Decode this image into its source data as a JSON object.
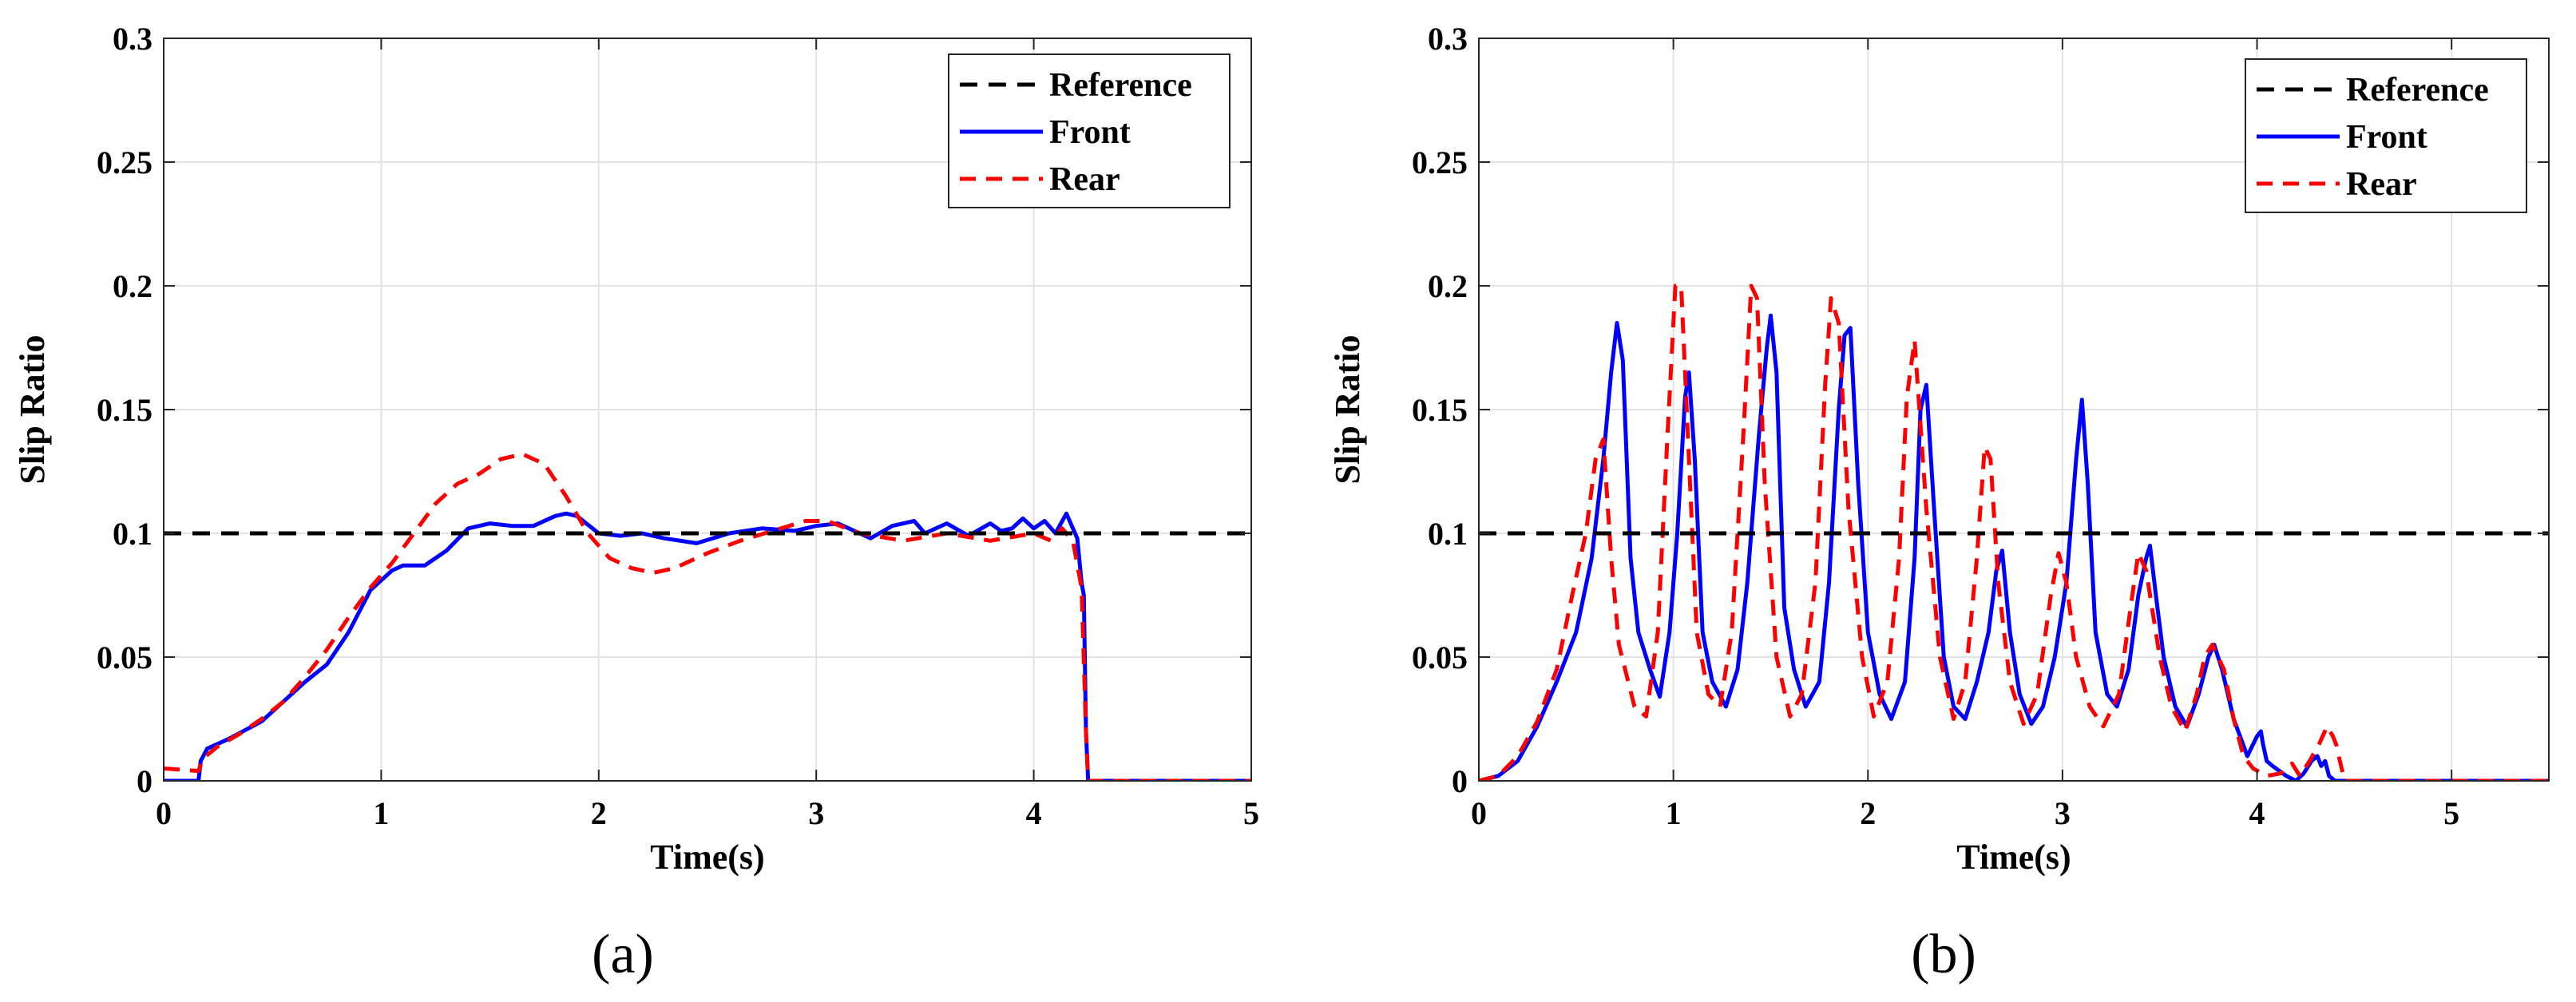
{
  "chart_data": [
    {
      "type": "line",
      "caption": "(a)",
      "xlabel": "Time(s)",
      "ylabel": "Slip Ratio",
      "xlim": [
        0,
        5
      ],
      "ylim": [
        0,
        0.3
      ],
      "xticks": [
        "0",
        "1",
        "2",
        "3",
        "4",
        "5"
      ],
      "yticks": [
        "0",
        "0.05",
        "0.1",
        "0.15",
        "0.2",
        "0.25",
        "0.3"
      ],
      "grid": true,
      "legend_position": "top-right",
      "series": [
        {
          "name": "Reference",
          "color": "#000000",
          "style": "dashed",
          "x": [
            0,
            5
          ],
          "y": [
            0.1,
            0.1
          ]
        },
        {
          "name": "Front",
          "color": "#0000ff",
          "style": "solid",
          "x": [
            0,
            0.16,
            0.17,
            0.2,
            0.3,
            0.45,
            0.55,
            0.65,
            0.75,
            0.85,
            0.95,
            1.05,
            1.1,
            1.2,
            1.3,
            1.4,
            1.5,
            1.6,
            1.7,
            1.8,
            1.85,
            1.9,
            2.0,
            2.1,
            2.2,
            2.3,
            2.45,
            2.6,
            2.75,
            2.9,
            3.0,
            3.1,
            3.25,
            3.35,
            3.45,
            3.5,
            3.6,
            3.7,
            3.8,
            3.85,
            3.9,
            3.95,
            4.0,
            4.05,
            4.1,
            4.15,
            4.2,
            4.22,
            4.23,
            4.24,
            4.25,
            5.0
          ],
          "y": [
            0,
            0,
            0.008,
            0.013,
            0.017,
            0.024,
            0.032,
            0.04,
            0.047,
            0.06,
            0.077,
            0.085,
            0.087,
            0.087,
            0.093,
            0.102,
            0.104,
            0.103,
            0.103,
            0.107,
            0.108,
            0.107,
            0.1,
            0.099,
            0.1,
            0.098,
            0.096,
            0.1,
            0.102,
            0.101,
            0.103,
            0.104,
            0.098,
            0.103,
            0.105,
            0.1,
            0.104,
            0.099,
            0.104,
            0.101,
            0.102,
            0.106,
            0.102,
            0.105,
            0.1,
            0.108,
            0.098,
            0.08,
            0.075,
            0.02,
            0,
            0
          ]
        },
        {
          "name": "Rear",
          "color": "#ff0000",
          "style": "dashed",
          "x": [
            0,
            0.16,
            0.18,
            0.25,
            0.35,
            0.45,
            0.55,
            0.65,
            0.75,
            0.85,
            0.95,
            1.05,
            1.15,
            1.25,
            1.35,
            1.45,
            1.55,
            1.65,
            1.75,
            1.85,
            1.95,
            2.05,
            2.15,
            2.25,
            2.35,
            2.5,
            2.65,
            2.8,
            2.95,
            3.05,
            3.2,
            3.4,
            3.6,
            3.8,
            4.0,
            4.08,
            4.13,
            4.18,
            4.22,
            4.24,
            4.25,
            5.0
          ],
          "y": [
            0.005,
            0.004,
            0.009,
            0.014,
            0.019,
            0.025,
            0.032,
            0.042,
            0.053,
            0.066,
            0.078,
            0.088,
            0.1,
            0.112,
            0.12,
            0.124,
            0.13,
            0.132,
            0.128,
            0.115,
            0.1,
            0.09,
            0.086,
            0.084,
            0.086,
            0.092,
            0.097,
            0.101,
            0.105,
            0.105,
            0.1,
            0.097,
            0.1,
            0.097,
            0.1,
            0.097,
            0.102,
            0.097,
            0.078,
            0.02,
            0,
            0
          ]
        }
      ]
    },
    {
      "type": "line",
      "caption": "(b)",
      "xlabel": "Time(s)",
      "ylabel": "Slip Ratio",
      "xlim": [
        0,
        5.5
      ],
      "ylim": [
        0,
        0.3
      ],
      "xticks": [
        "0",
        "1",
        "2",
        "3",
        "4",
        "5"
      ],
      "yticks": [
        "0",
        "0.05",
        "0.1",
        "0.15",
        "0.2",
        "0.25",
        "0.3"
      ],
      "grid": true,
      "legend_position": "top-right",
      "series": [
        {
          "name": "Reference",
          "color": "#000000",
          "style": "dashed",
          "x": [
            0,
            5.5
          ],
          "y": [
            0.1,
            0.1
          ]
        },
        {
          "name": "Front",
          "color": "#0000ff",
          "style": "solid",
          "x": [
            0,
            0.1,
            0.2,
            0.3,
            0.4,
            0.5,
            0.58,
            0.64,
            0.68,
            0.71,
            0.74,
            0.78,
            0.82,
            0.88,
            0.93,
            0.98,
            1.02,
            1.06,
            1.08,
            1.11,
            1.15,
            1.2,
            1.27,
            1.33,
            1.38,
            1.44,
            1.48,
            1.5,
            1.53,
            1.57,
            1.62,
            1.68,
            1.75,
            1.8,
            1.85,
            1.88,
            1.91,
            1.95,
            2.0,
            2.06,
            2.12,
            2.19,
            2.24,
            2.27,
            2.3,
            2.34,
            2.39,
            2.44,
            2.5,
            2.56,
            2.62,
            2.66,
            2.69,
            2.73,
            2.78,
            2.84,
            2.9,
            2.96,
            3.02,
            3.07,
            3.1,
            3.13,
            3.17,
            3.23,
            3.28,
            3.34,
            3.39,
            3.43,
            3.45,
            3.48,
            3.52,
            3.58,
            3.64,
            3.7,
            3.75,
            3.78,
            3.82,
            3.88,
            3.95,
            4.0,
            4.02,
            4.03,
            4.05,
            4.08,
            4.15,
            4.2,
            4.24,
            4.28,
            4.31,
            4.33,
            4.35,
            4.37,
            4.4,
            4.45,
            4.5,
            5.5
          ],
          "y": [
            0,
            0.002,
            0.008,
            0.022,
            0.04,
            0.06,
            0.09,
            0.13,
            0.165,
            0.185,
            0.17,
            0.09,
            0.06,
            0.045,
            0.034,
            0.06,
            0.1,
            0.155,
            0.165,
            0.13,
            0.06,
            0.04,
            0.03,
            0.045,
            0.08,
            0.14,
            0.175,
            0.188,
            0.165,
            0.07,
            0.045,
            0.03,
            0.04,
            0.08,
            0.15,
            0.18,
            0.183,
            0.12,
            0.06,
            0.035,
            0.025,
            0.04,
            0.09,
            0.15,
            0.16,
            0.11,
            0.05,
            0.03,
            0.025,
            0.04,
            0.06,
            0.085,
            0.093,
            0.06,
            0.035,
            0.023,
            0.03,
            0.05,
            0.08,
            0.13,
            0.154,
            0.12,
            0.06,
            0.035,
            0.03,
            0.045,
            0.075,
            0.09,
            0.095,
            0.075,
            0.05,
            0.03,
            0.022,
            0.035,
            0.05,
            0.055,
            0.045,
            0.025,
            0.01,
            0.018,
            0.02,
            0.015,
            0.008,
            0.006,
            0.002,
            0,
            0.003,
            0.008,
            0.01,
            0.006,
            0.008,
            0.002,
            0,
            0,
            0,
            0
          ]
        },
        {
          "name": "Rear",
          "color": "#ff0000",
          "style": "dashed",
          "x": [
            0,
            0.1,
            0.2,
            0.3,
            0.4,
            0.48,
            0.55,
            0.6,
            0.64,
            0.68,
            0.72,
            0.8,
            0.86,
            0.92,
            0.97,
            1.01,
            1.04,
            1.08,
            1.12,
            1.18,
            1.24,
            1.3,
            1.36,
            1.4,
            1.43,
            1.47,
            1.53,
            1.6,
            1.66,
            1.73,
            1.78,
            1.81,
            1.85,
            1.9,
            1.97,
            2.03,
            2.1,
            2.16,
            2.2,
            2.24,
            2.3,
            2.37,
            2.44,
            2.5,
            2.56,
            2.6,
            2.63,
            2.67,
            2.73,
            2.8,
            2.87,
            2.94,
            2.98,
            3.02,
            3.07,
            3.14,
            3.21,
            3.29,
            3.35,
            3.39,
            3.43,
            3.5,
            3.56,
            3.63,
            3.69,
            3.73,
            3.77,
            3.83,
            3.88,
            3.93,
            3.98,
            4.05,
            4.12,
            4.18,
            4.22,
            4.27,
            4.32,
            4.36,
            4.39,
            4.41,
            4.42,
            4.45,
            5.5
          ],
          "y": [
            0,
            0.002,
            0.01,
            0.024,
            0.045,
            0.075,
            0.1,
            0.13,
            0.138,
            0.09,
            0.055,
            0.03,
            0.026,
            0.06,
            0.14,
            0.2,
            0.2,
            0.13,
            0.06,
            0.035,
            0.03,
            0.06,
            0.14,
            0.2,
            0.195,
            0.12,
            0.05,
            0.026,
            0.035,
            0.08,
            0.16,
            0.195,
            0.185,
            0.11,
            0.05,
            0.026,
            0.04,
            0.09,
            0.155,
            0.178,
            0.11,
            0.05,
            0.025,
            0.04,
            0.09,
            0.135,
            0.13,
            0.08,
            0.04,
            0.023,
            0.035,
            0.075,
            0.092,
            0.08,
            0.05,
            0.03,
            0.022,
            0.035,
            0.07,
            0.092,
            0.085,
            0.05,
            0.03,
            0.02,
            0.035,
            0.05,
            0.055,
            0.045,
            0.025,
            0.01,
            0.005,
            0.002,
            0.003,
            0.007,
            0.002,
            0.008,
            0.015,
            0.022,
            0.018,
            0.014,
            0.01,
            0,
            0
          ]
        }
      ]
    }
  ]
}
